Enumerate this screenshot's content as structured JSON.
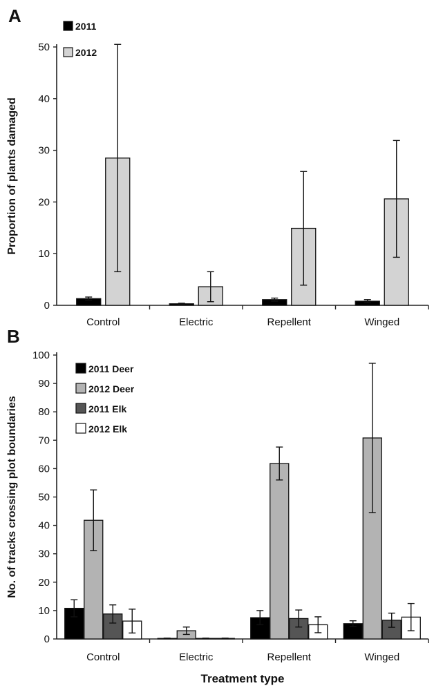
{
  "chart_data": [
    {
      "panel": "A",
      "type": "bar",
      "categories": [
        "Control",
        "Electric",
        "Repellent",
        "Winged"
      ],
      "ylabel": "Proportion of plants damaged",
      "xlabel": "",
      "ylim": [
        0,
        50
      ],
      "yticks": [
        0,
        10,
        20,
        30,
        40,
        50
      ],
      "grid": false,
      "legend_position": "top-left",
      "series": [
        {
          "name": "2011",
          "color": "#000000",
          "values": [
            1.3,
            0.3,
            1.1,
            0.8
          ],
          "error": [
            0.3,
            0.1,
            0.3,
            0.3
          ]
        },
        {
          "name": "2012",
          "color": "#d3d3d3",
          "values": [
            28.5,
            3.6,
            14.9,
            20.6
          ],
          "error": [
            22.0,
            2.9,
            11.0,
            11.3
          ]
        }
      ]
    },
    {
      "panel": "B",
      "type": "bar",
      "categories": [
        "Control",
        "Electric",
        "Repellent",
        "Winged"
      ],
      "ylabel": "No. of tracks crossing plot boundaries",
      "xlabel": "Treatment type",
      "ylim": [
        0,
        100
      ],
      "yticks": [
        0,
        10,
        20,
        30,
        40,
        50,
        60,
        70,
        80,
        90,
        100
      ],
      "grid": false,
      "legend_position": "top-left",
      "series": [
        {
          "name": "2011 Deer",
          "color": "#000000",
          "values": [
            10.8,
            0.2,
            7.5,
            5.4
          ],
          "error": [
            3.0,
            0.1,
            2.5,
            1.0
          ]
        },
        {
          "name": "2012 Deer",
          "color": "#b3b3b3",
          "values": [
            41.8,
            2.9,
            61.8,
            70.8
          ],
          "error": [
            10.7,
            1.3,
            5.8,
            26.3
          ]
        },
        {
          "name": "2011 Elk",
          "color": "#555555",
          "values": [
            8.8,
            0.2,
            7.2,
            6.6
          ],
          "error": [
            3.2,
            0.1,
            3.0,
            2.5
          ]
        },
        {
          "name": "2012 Elk",
          "color": "#ffffff",
          "values": [
            6.3,
            0.2,
            5.0,
            7.7
          ],
          "error": [
            4.2,
            0.1,
            2.8,
            4.8
          ]
        }
      ]
    }
  ]
}
